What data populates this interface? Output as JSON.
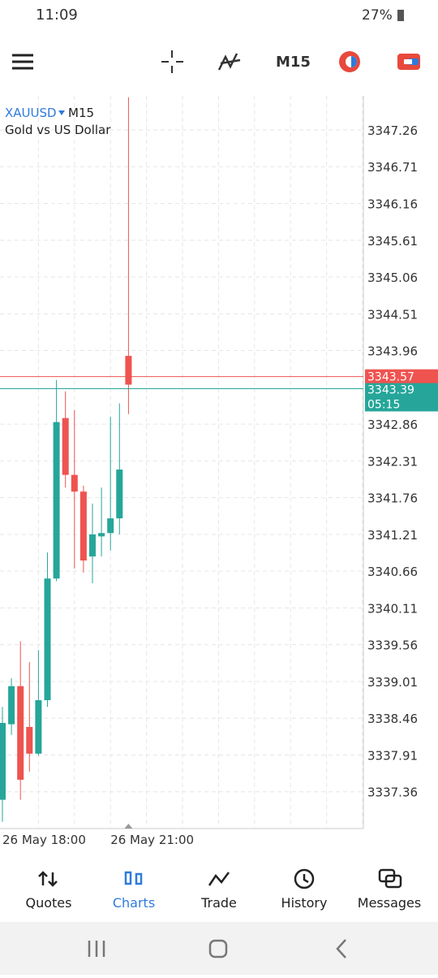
{
  "status_bar": {
    "time": "11:09",
    "battery": "27%"
  },
  "toolbar": {
    "timeframe": "M15"
  },
  "chart_data": {
    "type": "candlestick",
    "symbol": "XAUUSD",
    "timeframe": "M15",
    "description": "Gold vs US Dollar",
    "categories": [
      "26 May 18:00",
      null,
      null,
      null,
      null,
      null,
      null,
      null,
      null,
      null,
      null,
      null,
      "26 May 21:00",
      null,
      null
    ],
    "open": [
      3337.24,
      3338.37,
      3338.94,
      3338.33,
      3337.93,
      3338.73,
      3340.55,
      3342.95,
      3342.1,
      3341.85,
      3340.88,
      3341.18,
      3341.23,
      3341.45,
      3343.88
    ],
    "high": [
      3338.63,
      3339.06,
      3339.61,
      3339.3,
      3339.48,
      3340.94,
      3343.52,
      3343.35,
      3343.07,
      3341.94,
      3341.67,
      3341.91,
      3342.97,
      3343.17,
      3347.75
    ],
    "low": [
      3336.91,
      3338.21,
      3337.24,
      3337.66,
      3337.9,
      3338.63,
      3340.51,
      3341.91,
      3340.7,
      3340.64,
      3340.48,
      3340.88,
      3340.97,
      3341.21,
      3343.01
    ],
    "close": [
      3338.39,
      3338.94,
      3337.54,
      3337.93,
      3338.73,
      3340.55,
      3342.89,
      3342.1,
      3341.85,
      3340.82,
      3341.21,
      3341.23,
      3341.45,
      3342.18,
      3343.45
    ],
    "up_color": "#26a69a",
    "down_color": "#ef5350",
    "ylim": [
      3336.81,
      3347.77
    ],
    "yticks": [
      3347.26,
      3346.71,
      3346.16,
      3345.61,
      3345.06,
      3344.51,
      3343.96,
      3342.86,
      3342.31,
      3341.76,
      3341.21,
      3340.66,
      3340.11,
      3339.56,
      3339.01,
      3338.46,
      3337.91,
      3337.36
    ],
    "grid": true,
    "bid": 3343.57,
    "ask": 3343.39,
    "timer": "05:15"
  },
  "nav": {
    "items": [
      "Quotes",
      "Charts",
      "Trade",
      "History",
      "Messages"
    ],
    "active": 1
  }
}
